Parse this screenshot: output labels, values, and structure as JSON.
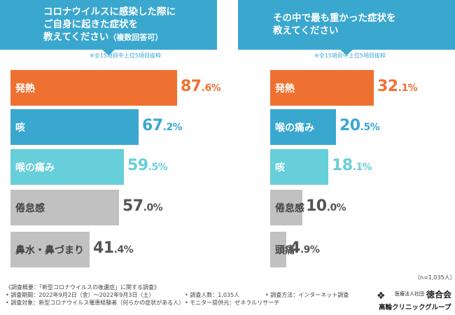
{
  "left_header": {
    "line1": "コロナウイルスに感染した際に",
    "line2": "ご自身に起きた症状を",
    "line3": "教えてください",
    "line3_suffix": "（複数回答可）"
  },
  "right_header": {
    "line1": "その中で最も重かった症状を",
    "line2": "教えてください"
  },
  "left_note": "※全15項目中上位5項目抜粋",
  "right_note": "※全15項目中上位5項目抜粋",
  "sample_size": "（n=1,035人）",
  "colors": {
    "header": "#3aa7cf",
    "orange": "#ef7132",
    "blue": "#3aa7cf",
    "light_blue": "#67cfd9",
    "gray": "#c1c1c1"
  },
  "chart_data": [
    {
      "type": "bar",
      "orientation": "horizontal",
      "title": "コロナウイルスに感染した際にご自身に起きた症状を教えてください（複数回答可）",
      "unit": "%",
      "xlim": [
        0,
        100
      ],
      "items": [
        {
          "label": "発熱",
          "value": 87.6,
          "int": "87",
          "dec": ".6%",
          "color": "#ef7132",
          "value_color": "#ef7132"
        },
        {
          "label": "咳",
          "value": 67.2,
          "int": "67",
          "dec": ".2%",
          "color": "#3aa7cf",
          "value_color": "#3aa7cf"
        },
        {
          "label": "喉の痛み",
          "value": 59.5,
          "int": "59",
          "dec": ".5%",
          "color": "#67cfd9",
          "value_color": "#67cfd9"
        },
        {
          "label": "倦怠感",
          "value": 57.0,
          "int": "57",
          "dec": ".0%",
          "color": "#c1c1c1",
          "value_color": "#555555"
        },
        {
          "label": "鼻水・鼻づまり",
          "value": 41.4,
          "int": "41",
          "dec": ".4%",
          "color": "#c1c1c1",
          "value_color": "#555555"
        }
      ]
    },
    {
      "type": "bar",
      "orientation": "horizontal",
      "title": "その中で最も重かった症状を教えてください",
      "unit": "%",
      "xlim": [
        0,
        50
      ],
      "items": [
        {
          "label": "発熱",
          "value": 32.1,
          "int": "32",
          "dec": ".1%",
          "color": "#ef7132",
          "value_color": "#ef7132"
        },
        {
          "label": "喉の痛み",
          "value": 20.5,
          "int": "20",
          "dec": ".5%",
          "color": "#3aa7cf",
          "value_color": "#3aa7cf"
        },
        {
          "label": "咳",
          "value": 18.1,
          "int": "18",
          "dec": ".1%",
          "color": "#67cfd9",
          "value_color": "#67cfd9"
        },
        {
          "label": "倦怠感",
          "value": 10.0,
          "int": "10",
          "dec": ".0%",
          "color": "#c1c1c1",
          "value_color": "#555555"
        },
        {
          "label": "頭痛",
          "value": 4.9,
          "int": "4",
          "dec": ".9%",
          "color": "#c1c1c1",
          "value_color": "#555555"
        }
      ]
    }
  ],
  "footer": {
    "overview": "《調査概要：「新型コロナウイルスの後遺症」に関する調査》",
    "period": "• 調査期間：2022年9月2日（金）～2022年9月3日（土）",
    "target": "• 調査対象：新型コロナウイルス罹患経験者（何らかの症状がある人）",
    "count": "• 調査人数：1,035人",
    "monitor": "• モニター提供元：ゼネラルリサーチ",
    "method": "• 調査方法：インターネット調査"
  },
  "logo": {
    "org": "医療法人社団",
    "name": "徳合会",
    "group": "高輪クリニックグループ"
  }
}
